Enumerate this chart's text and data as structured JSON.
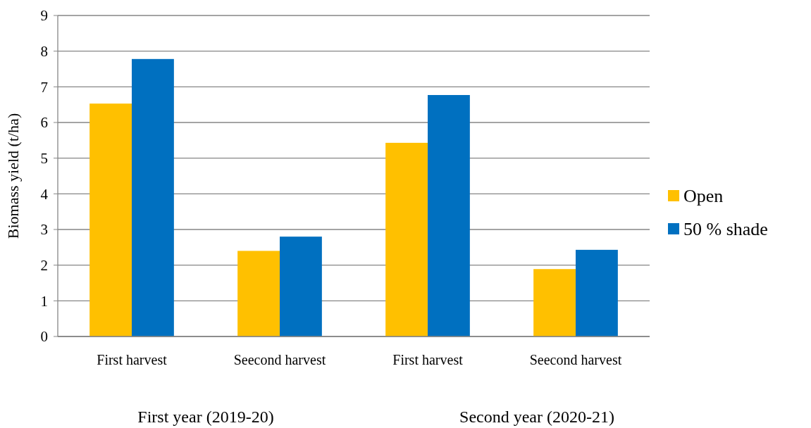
{
  "chart_data": {
    "type": "bar",
    "ylabel": "Biomass yield (t/ha)",
    "categories": [
      "First harvest",
      "Seecond harvest",
      "First harvest",
      "Seecond harvest"
    ],
    "series": [
      {
        "name": "Open",
        "color": "#ffc000",
        "values": [
          6.53,
          2.4,
          5.43,
          1.89
        ]
      },
      {
        "name": "50 % shade",
        "color": "#0070c0",
        "values": [
          7.78,
          2.8,
          6.77,
          2.43
        ]
      }
    ],
    "ylim": [
      0,
      9
    ],
    "yticks": [
      0,
      1,
      2,
      3,
      4,
      5,
      6,
      7,
      8,
      9
    ],
    "grid": "y",
    "legend": "right",
    "annotations": [
      "First year (2019-20)",
      "Second year (2020-21)"
    ]
  }
}
